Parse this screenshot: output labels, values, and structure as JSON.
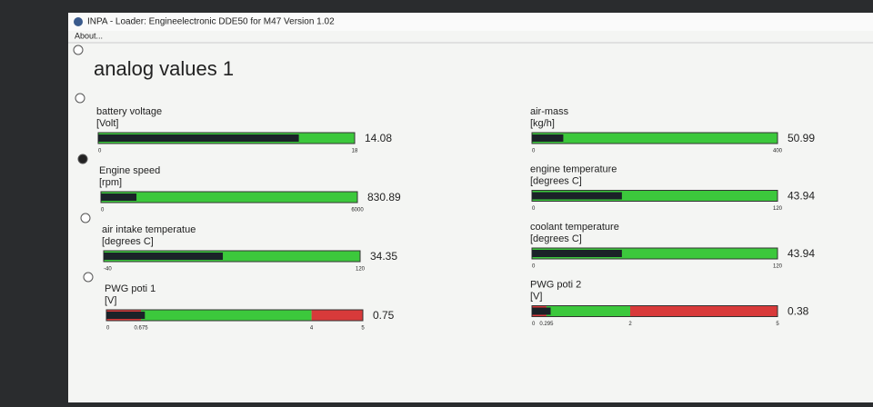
{
  "window": {
    "title": "INPA - Loader: Engineelectronic DDE50 for M47 Version 1.02",
    "menu": [
      "About..."
    ]
  },
  "page_title": "analog values 1",
  "gauges": [
    {
      "label": "battery voltage",
      "unit": "[Volt]",
      "value": 14.08,
      "ticks": [
        0,
        18
      ],
      "zones": [
        "#3cc83c"
      ]
    },
    {
      "label": "Engine speed",
      "unit": "[rpm]",
      "value": 830.89,
      "ticks": [
        0,
        6000
      ],
      "zones": [
        "#3cc83c"
      ]
    },
    {
      "label": "air intake temperatue",
      "unit": "[degrees C]",
      "value": 34.35,
      "ticks": [
        -40,
        120
      ],
      "zones": [
        "#3cc83c"
      ]
    },
    {
      "label": "PWG poti 1",
      "unit": "[V]",
      "value": 0.75,
      "ticks": [
        0,
        0.675,
        4,
        5
      ],
      "zones": [
        "#d83a3a",
        "#3cc83c",
        "#d83a3a"
      ]
    },
    {
      "label": "air-mass",
      "unit": "[kg/h]",
      "value": 50.99,
      "ticks": [
        0,
        400
      ],
      "zones": [
        "#3cc83c"
      ]
    },
    {
      "label": "engine temperature",
      "unit": "[degrees C]",
      "value": 43.94,
      "ticks": [
        0,
        120
      ],
      "zones": [
        "#3cc83c"
      ]
    },
    {
      "label": "coolant temperature",
      "unit": "[degrees C]",
      "value": 43.94,
      "ticks": [
        0,
        120
      ],
      "zones": [
        "#3cc83c"
      ]
    },
    {
      "label": "PWG poti 2",
      "unit": "[V]",
      "value": 0.38,
      "ticks": [
        0,
        0.295,
        2,
        5
      ],
      "zones": [
        "#d83a3a",
        "#3cc83c",
        "#d83a3a"
      ]
    }
  ]
}
